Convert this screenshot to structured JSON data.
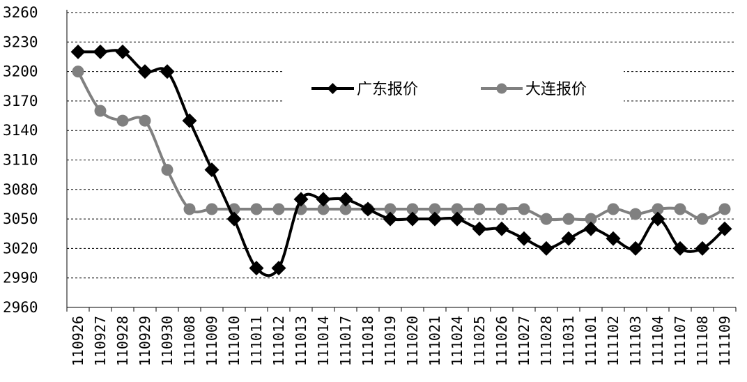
{
  "chart_data": {
    "type": "line",
    "title": "",
    "xlabel": "",
    "ylabel": "",
    "ylim": [
      2960,
      3260
    ],
    "y_ticks": [
      3260,
      3230,
      3200,
      3170,
      3140,
      3110,
      3080,
      3050,
      3020,
      2990,
      2960
    ],
    "grid": "horizontal dashed",
    "legend_position": "top-center",
    "categories": [
      "110926",
      "110927",
      "110928",
      "110929",
      "110930",
      "111008",
      "111009",
      "111010",
      "111011",
      "111012",
      "111013",
      "111014",
      "111017",
      "111018",
      "111019",
      "111020",
      "111021",
      "111024",
      "111025",
      "111026",
      "111027",
      "111028",
      "111031",
      "111101",
      "111102",
      "111103",
      "111104",
      "111107",
      "111108",
      "111109"
    ],
    "series": [
      {
        "name": "广东报价",
        "color": "#000000",
        "marker": "diamond",
        "values": [
          3220,
          3220,
          3220,
          3200,
          3200,
          3150,
          3100,
          3050,
          3000,
          3000,
          3070,
          3070,
          3070,
          3060,
          3050,
          3050,
          3050,
          3050,
          3040,
          3040,
          3030,
          3020,
          3030,
          3040,
          3030,
          3020,
          3050,
          3020,
          3020,
          3040
        ]
      },
      {
        "name": "大连报价",
        "color": "#808080",
        "marker": "circle",
        "values": [
          3200,
          3160,
          3150,
          3150,
          3100,
          3060,
          3060,
          3060,
          3060,
          3060,
          3060,
          3060,
          3060,
          3060,
          3060,
          3060,
          3060,
          3060,
          3060,
          3060,
          3060,
          3050,
          3050,
          3050,
          3060,
          3055,
          3060,
          3060,
          3050,
          3060
        ]
      }
    ]
  }
}
